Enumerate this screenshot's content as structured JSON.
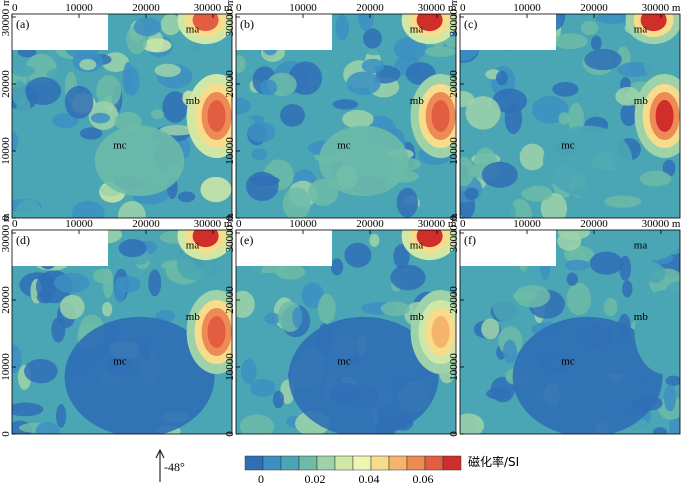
{
  "x_ticks": [
    "0",
    "10000",
    "20000",
    "30000 m"
  ],
  "y_ticks": [
    "0",
    "10000",
    "20000",
    "30000 m"
  ],
  "anomaly_labels": {
    "ma": "ma",
    "mb": "mb",
    "mc": "mc"
  },
  "panels": [
    {
      "label": "(a)",
      "mc_level": 0.018,
      "mb_level": 0.062,
      "ma_level": 0.064,
      "bg_level": 0.016
    },
    {
      "label": "(b)",
      "mc_level": 0.02,
      "mb_level": 0.064,
      "ma_level": 0.066,
      "bg_level": 0.014
    },
    {
      "label": "(c)",
      "mc_level": 0.016,
      "mb_level": 0.066,
      "ma_level": 0.066,
      "bg_level": 0.012
    },
    {
      "label": "(d)",
      "mc_level": 0.002,
      "mb_level": 0.064,
      "ma_level": 0.068,
      "bg_level": 0.014
    },
    {
      "label": "(e)",
      "mc_level": 0.0,
      "mb_level": 0.05,
      "ma_level": 0.066,
      "bg_level": 0.014
    },
    {
      "label": "(f)",
      "mc_level": 0.002,
      "mb_level": 0.016,
      "ma_level": 0.012,
      "bg_level": 0.012
    }
  ],
  "direction": {
    "label": "-48°"
  },
  "colorbar": {
    "title": "磁化率/SI",
    "ticks": [
      "0",
      "0.02",
      "0.04",
      "0.06"
    ],
    "colors": [
      "#2f6fb6",
      "#3c8fc2",
      "#4aa6b4",
      "#6dbba8",
      "#9ed3a9",
      "#cfe8a8",
      "#f1f5b2",
      "#f7dc8c",
      "#f4b46b",
      "#ee8a55",
      "#e25d42",
      "#cf2e2a"
    ]
  }
}
